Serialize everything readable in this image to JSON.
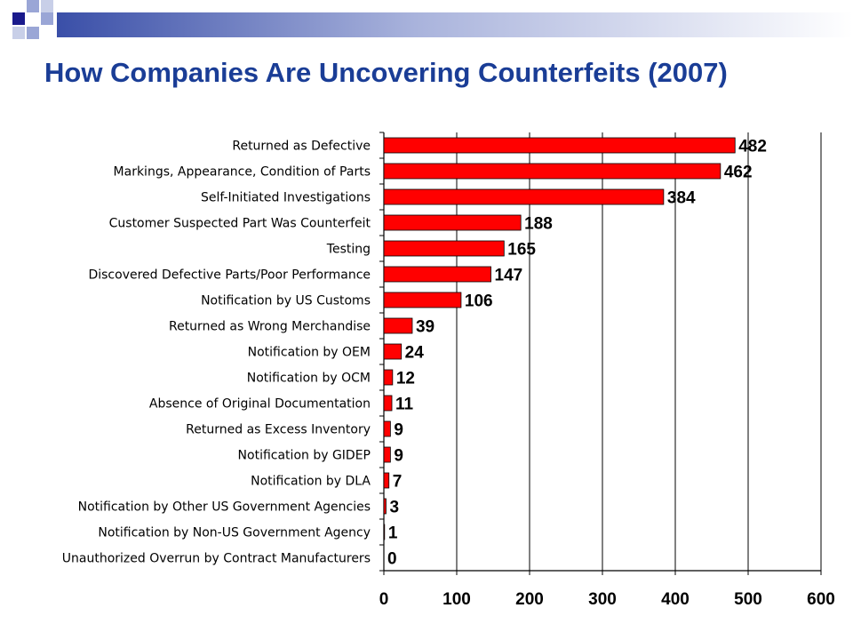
{
  "title": "How Companies Are Uncovering Counterfeits (2007)",
  "colors": {
    "title": "#1a3d96",
    "bar": "#ff0000",
    "bar_edge": "#000000",
    "grid": "#000000",
    "deco_dark": "#1a1a8c",
    "deco_light": "#9aa6d6"
  },
  "chart_data": {
    "type": "bar",
    "orientation": "horizontal",
    "title": "",
    "xlabel": "",
    "ylabel": "",
    "categories": [
      "Returned as Defective",
      "Markings, Appearance, Condition of Parts",
      "Self-Initiated Investigations",
      "Customer Suspected Part Was Counterfeit",
      "Testing",
      "Discovered Defective Parts/Poor Performance",
      "Notification by US Customs",
      "Returned as Wrong Merchandise",
      "Notification by OEM",
      "Notification by OCM",
      "Absence of Original Documentation",
      "Returned as Excess Inventory",
      "Notification by GIDEP",
      "Notification by DLA",
      "Notification by Other US Government Agencies",
      "Notification by Non-US Government Agency",
      "Unauthorized Overrun by Contract Manufacturers"
    ],
    "values": [
      482,
      462,
      384,
      188,
      165,
      147,
      106,
      39,
      24,
      12,
      11,
      9,
      9,
      7,
      3,
      1,
      0
    ],
    "xlim": [
      0,
      600
    ],
    "xticks": [
      0,
      100,
      200,
      300,
      400,
      500,
      600
    ],
    "grid": true,
    "legend": "none"
  }
}
